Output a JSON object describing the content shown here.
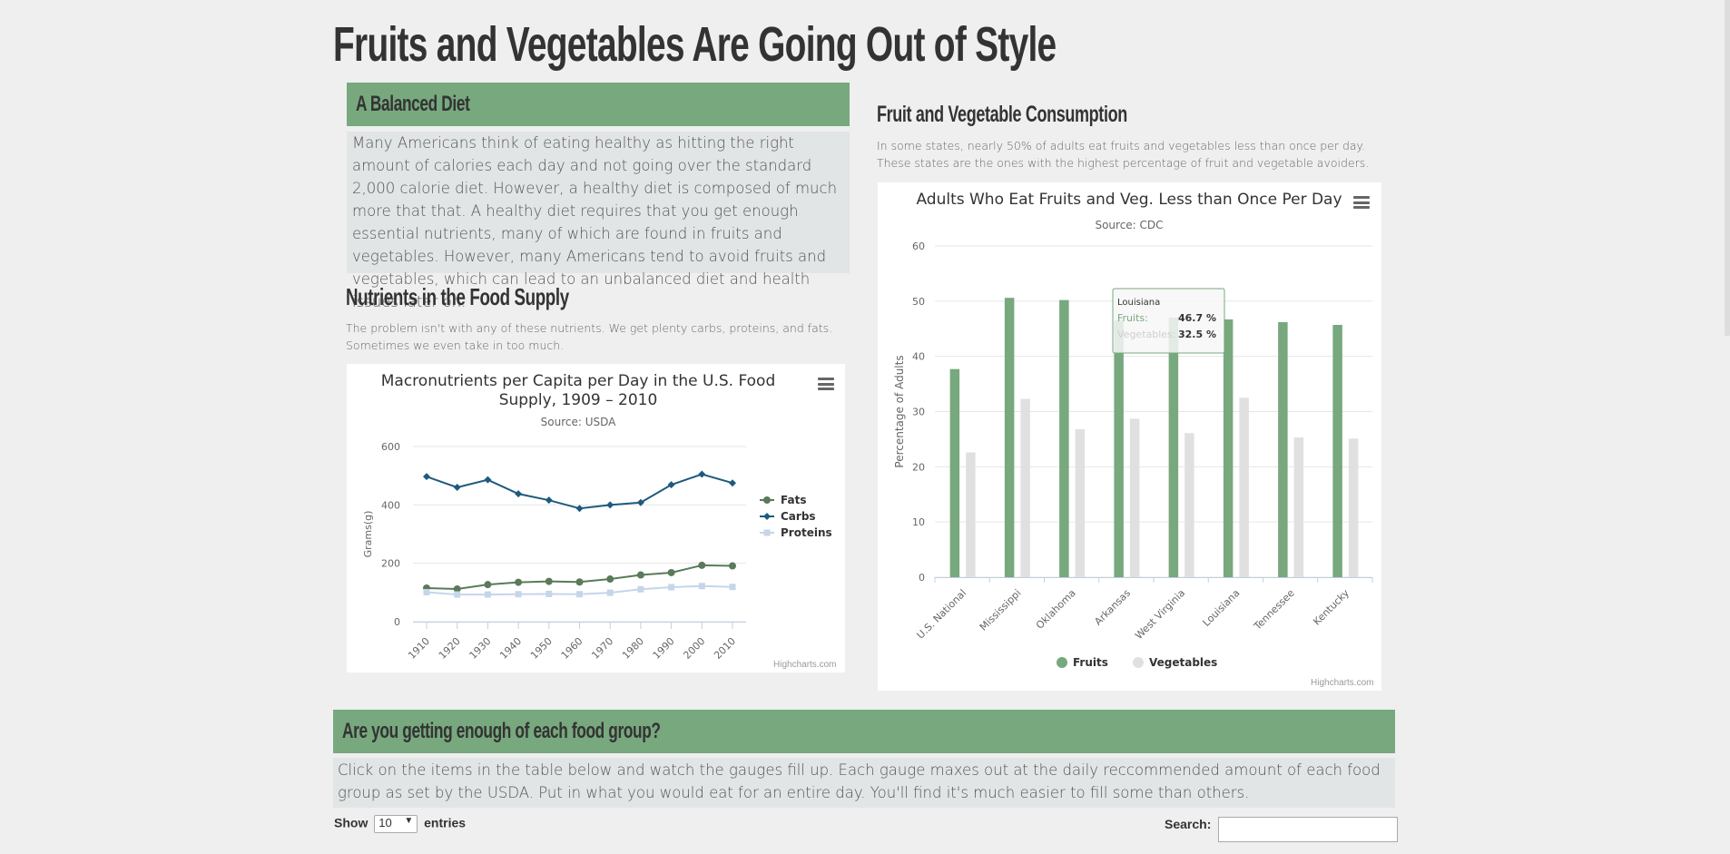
{
  "page": {
    "title": "Fruits and Vegetables Are Going Out of Style"
  },
  "balanced": {
    "heading": "A Balanced Diet",
    "body": "Many Americans think of eating healthy as hitting the right amount of calories each day and not going over the standard 2,000 calorie diet. However, a healthy diet is composed of much more that that. A healthy diet requires that you get enough essential nutrients, many of which are found in fruits and vegetables. However, many Americans tend to avoid fruits and vegetables, which can lead to an unbalanced diet and health issues later on."
  },
  "nutrients": {
    "heading": "Nutrients in the Food Supply",
    "body": "The problem isn't with any of these nutrients. We get plenty carbs, proteins, and fats. Sometimes we even take in too much."
  },
  "consumption": {
    "heading": "Fruit and Vegetable Consumption",
    "body": "In some states, nearly 50% of adults eat fruits and vegetables less than once per day. These states are the ones with the highest percentage of fruit and vegetable avoiders."
  },
  "food_group": {
    "heading": "Are you getting enough of each food group?",
    "body": "Click on the items in the table below and watch the gauges fill up. Each gauge maxes out at the daily reccommended amount of each food group as set by the USDA. Put in what you would eat for an entire day. You'll find it's much easier to fill some than others."
  },
  "table_controls": {
    "show_label": "Show",
    "length_value": "10",
    "entries_label": "entries",
    "search_label": "Search:",
    "search_value": ""
  },
  "credits": "Highcharts.com",
  "colors": {
    "green": "#78a87e",
    "gray_box": "#e1e5e5",
    "fats": "#5a7a5a",
    "carbs": "#1f5a7e",
    "proteins": "#c5d6ea",
    "fruits": "#78a87e",
    "vegetables": "#e0e0e0"
  },
  "chart_data": [
    {
      "type": "line",
      "title": "Macronutrients per Capita per Day in the U.S. Food Supply, 1909 – 2010",
      "title_lines": [
        "Macronutrients per Capita per Day in the U.S. Food",
        "Supply, 1909 – 2010"
      ],
      "subtitle": "Source: USDA",
      "xlabel": "",
      "ylabel": "Grams(g)",
      "ylim": [
        0,
        600
      ],
      "yticks": [
        0,
        200,
        400,
        600
      ],
      "x": [
        1910,
        1920,
        1930,
        1940,
        1950,
        1960,
        1970,
        1980,
        1990,
        2000,
        2010
      ],
      "xticks": [
        "1910",
        "1920",
        "1930",
        "1940",
        "1950",
        "1960",
        "1970",
        "1980",
        "1990",
        "2000",
        "2010"
      ],
      "legend_position": "right",
      "grid": true,
      "series": [
        {
          "name": "Fats",
          "marker": "circle",
          "color": "#5a7a5a",
          "values": [
            115,
            112,
            127,
            135,
            138,
            136,
            146,
            160,
            168,
            193,
            191
          ]
        },
        {
          "name": "Carbs",
          "marker": "diamond",
          "color": "#1f5a7e",
          "values": [
            497,
            460,
            486,
            438,
            416,
            388,
            400,
            408,
            469,
            505,
            475
          ]
        },
        {
          "name": "Proteins",
          "marker": "square",
          "color": "#c5d6ea",
          "values": [
            101,
            93,
            93,
            94,
            95,
            94,
            99,
            111,
            118,
            122,
            119
          ]
        }
      ]
    },
    {
      "type": "bar",
      "title": "Adults Who Eat Fruits and Veg. Less than Once Per Day",
      "subtitle": "Source: CDC",
      "xlabel": "",
      "ylabel": "Percentage of Adults",
      "ylim": [
        0,
        60
      ],
      "yticks": [
        0,
        10,
        20,
        30,
        40,
        50,
        60
      ],
      "categories": [
        "U.S. National",
        "Mississippi",
        "Oklahoma",
        "Arkansas",
        "West Virginia",
        "Louisiana",
        "Tennessee",
        "Kentucky"
      ],
      "legend_position": "bottom-center",
      "grid": true,
      "series": [
        {
          "name": "Fruits",
          "color": "#78a87e",
          "values": [
            37.7,
            50.6,
            50.2,
            46.5,
            47.0,
            46.7,
            46.2,
            45.7
          ]
        },
        {
          "name": "Vegetables",
          "color": "#e0e0e0",
          "values": [
            22.6,
            32.3,
            26.8,
            28.7,
            26.1,
            32.5,
            25.3,
            25.1
          ]
        }
      ],
      "tooltip": {
        "category": "Louisiana",
        "rows": [
          {
            "label": "Fruits:",
            "value": "46.7 %"
          },
          {
            "label": "Vegetables:",
            "value": "32.5 %"
          }
        ]
      }
    }
  ]
}
